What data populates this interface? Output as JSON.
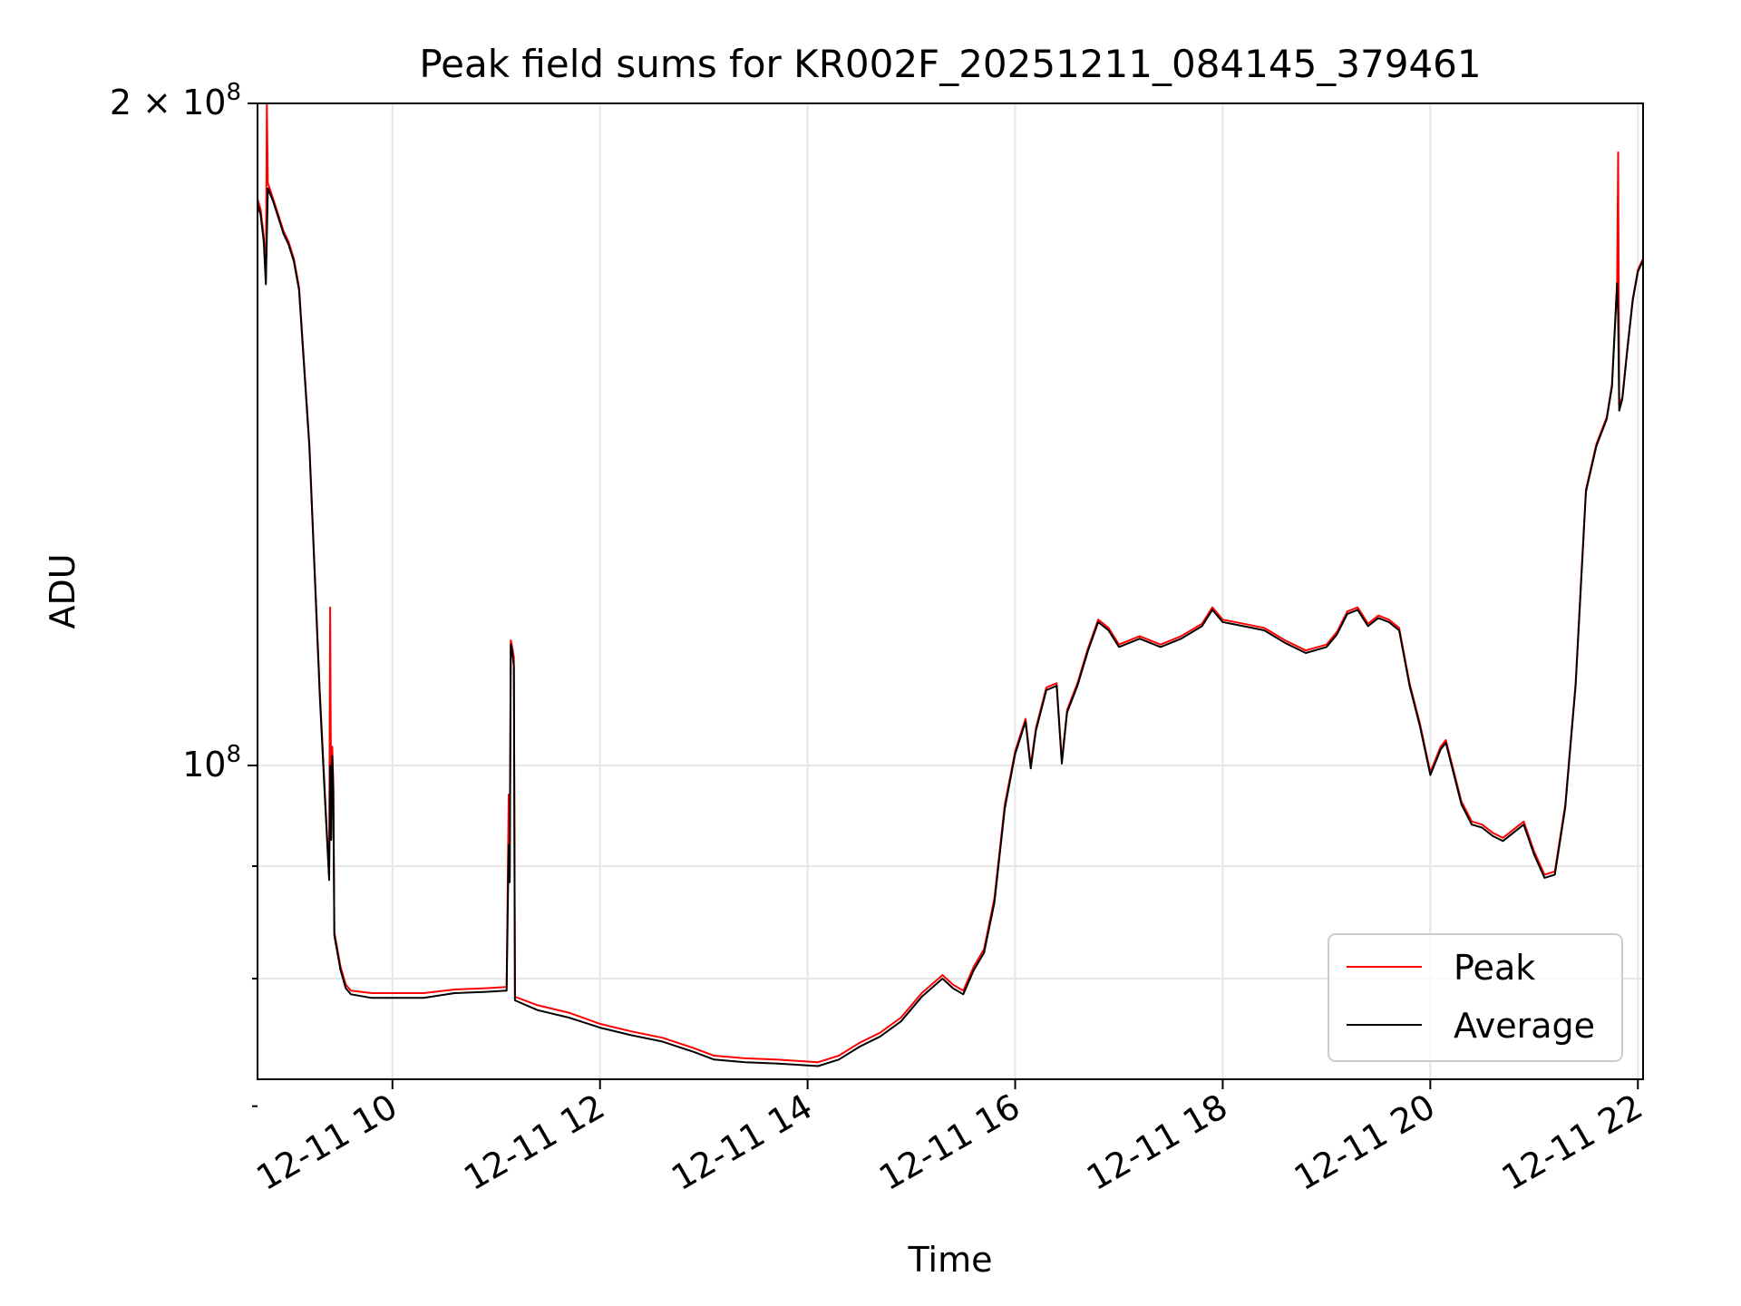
{
  "chart_data": {
    "type": "line",
    "title": "Peak field sums for KR002F_20251211_084145_379461",
    "xlabel": "Time",
    "ylabel": "ADU",
    "yscale": "log",
    "xlim_hours": [
      8.7,
      22.05
    ],
    "ylim": [
      72000000,
      200000000
    ],
    "x_ticks": [
      {
        "value": 10,
        "label": "12-11 10"
      },
      {
        "value": 12,
        "label": "12-11 12"
      },
      {
        "value": 14,
        "label": "12-11 14"
      },
      {
        "value": 16,
        "label": "12-11 16"
      },
      {
        "value": 18,
        "label": "12-11 18"
      },
      {
        "value": 20,
        "label": "12-11 20"
      },
      {
        "value": 22,
        "label": "12-11 22"
      }
    ],
    "y_major_ticks": [
      {
        "value": 200000000,
        "label_base": "2 × 10",
        "label_exp": "8"
      },
      {
        "value": 100000000,
        "label_base": "10",
        "label_exp": "8"
      }
    ],
    "y_minor_ticks": [
      90000000,
      80000000,
      70000000
    ],
    "grid": true,
    "legend_position": "lower-right",
    "series": [
      {
        "name": "Peak",
        "color": "#ff0000",
        "points": [
          [
            8.7,
            181000000
          ],
          [
            8.73,
            179000000
          ],
          [
            8.76,
            174000000
          ],
          [
            8.78,
            166000000
          ],
          [
            8.79,
            200000000
          ],
          [
            8.8,
            184000000
          ],
          [
            8.85,
            181000000
          ],
          [
            8.9,
            178000000
          ],
          [
            8.95,
            175000000
          ],
          [
            9.0,
            173000000
          ],
          [
            9.05,
            170000000
          ],
          [
            9.1,
            165000000
          ],
          [
            9.2,
            140000000
          ],
          [
            9.3,
            108000000
          ],
          [
            9.35,
            97000000
          ],
          [
            9.39,
            89000000
          ],
          [
            9.4,
            118000000
          ],
          [
            9.41,
            93000000
          ],
          [
            9.42,
            102000000
          ],
          [
            9.43,
            98000000
          ],
          [
            9.44,
            84000000
          ],
          [
            9.5,
            81000000
          ],
          [
            9.55,
            79500000
          ],
          [
            9.6,
            79000000
          ],
          [
            9.8,
            78800000
          ],
          [
            10.0,
            78800000
          ],
          [
            10.3,
            78800000
          ],
          [
            10.6,
            79100000
          ],
          [
            10.9,
            79200000
          ],
          [
            11.1,
            79300000
          ],
          [
            11.12,
            97000000
          ],
          [
            11.13,
            89000000
          ],
          [
            11.14,
            114000000
          ],
          [
            11.15,
            113500000
          ],
          [
            11.17,
            112000000
          ],
          [
            11.18,
            78500000
          ],
          [
            11.4,
            77800000
          ],
          [
            11.7,
            77200000
          ],
          [
            12.0,
            76300000
          ],
          [
            12.3,
            75700000
          ],
          [
            12.6,
            75200000
          ],
          [
            12.9,
            74400000
          ],
          [
            13.1,
            73800000
          ],
          [
            13.4,
            73600000
          ],
          [
            13.7,
            73500000
          ],
          [
            13.9,
            73400000
          ],
          [
            14.1,
            73300000
          ],
          [
            14.3,
            73800000
          ],
          [
            14.5,
            74800000
          ],
          [
            14.7,
            75600000
          ],
          [
            14.9,
            76800000
          ],
          [
            15.1,
            78800000
          ],
          [
            15.3,
            80300000
          ],
          [
            15.4,
            79500000
          ],
          [
            15.5,
            79000000
          ],
          [
            15.6,
            81000000
          ],
          [
            15.7,
            82500000
          ],
          [
            15.8,
            87000000
          ],
          [
            15.9,
            96000000
          ],
          [
            16.0,
            101500000
          ],
          [
            16.1,
            105000000
          ],
          [
            16.15,
            100000000
          ],
          [
            16.2,
            104000000
          ],
          [
            16.3,
            108500000
          ],
          [
            16.4,
            109000000
          ],
          [
            16.45,
            100500000
          ],
          [
            16.5,
            106000000
          ],
          [
            16.6,
            109000000
          ],
          [
            16.7,
            113000000
          ],
          [
            16.8,
            116500000
          ],
          [
            16.9,
            115500000
          ],
          [
            17.0,
            113500000
          ],
          [
            17.2,
            114500000
          ],
          [
            17.4,
            113500000
          ],
          [
            17.6,
            114500000
          ],
          [
            17.8,
            116000000
          ],
          [
            17.9,
            118000000
          ],
          [
            18.0,
            116500000
          ],
          [
            18.2,
            116000000
          ],
          [
            18.4,
            115500000
          ],
          [
            18.6,
            114000000
          ],
          [
            18.8,
            112800000
          ],
          [
            19.0,
            113500000
          ],
          [
            19.1,
            115000000
          ],
          [
            19.2,
            117500000
          ],
          [
            19.3,
            118000000
          ],
          [
            19.4,
            116000000
          ],
          [
            19.5,
            117000000
          ],
          [
            19.6,
            116500000
          ],
          [
            19.7,
            115500000
          ],
          [
            19.8,
            109000000
          ],
          [
            19.9,
            104500000
          ],
          [
            20.0,
            99300000
          ],
          [
            20.1,
            102000000
          ],
          [
            20.15,
            102700000
          ],
          [
            20.2,
            100500000
          ],
          [
            20.3,
            96300000
          ],
          [
            20.4,
            94300000
          ],
          [
            20.5,
            94000000
          ],
          [
            20.6,
            93200000
          ],
          [
            20.7,
            92700000
          ],
          [
            20.8,
            93500000
          ],
          [
            20.9,
            94300000
          ],
          [
            21.0,
            91400000
          ],
          [
            21.1,
            89200000
          ],
          [
            21.2,
            89500000
          ],
          [
            21.3,
            96000000
          ],
          [
            21.4,
            109000000
          ],
          [
            21.5,
            133500000
          ],
          [
            21.6,
            140000000
          ],
          [
            21.7,
            144000000
          ],
          [
            21.75,
            149000000
          ],
          [
            21.8,
            166000000
          ],
          [
            21.81,
            190000000
          ],
          [
            21.82,
            146000000
          ],
          [
            21.85,
            147000000
          ],
          [
            21.9,
            155000000
          ],
          [
            21.95,
            163000000
          ],
          [
            22.0,
            168000000
          ],
          [
            22.05,
            170000000
          ]
        ]
      },
      {
        "name": "Average",
        "color": "#000000",
        "points": [
          [
            8.7,
            180000000
          ],
          [
            8.73,
            178000000
          ],
          [
            8.76,
            173000000
          ],
          [
            8.78,
            165500000
          ],
          [
            8.79,
            174000000
          ],
          [
            8.8,
            183000000
          ],
          [
            8.85,
            180500000
          ],
          [
            8.9,
            177500000
          ],
          [
            8.95,
            174500000
          ],
          [
            9.0,
            172500000
          ],
          [
            9.05,
            169500000
          ],
          [
            9.1,
            164500000
          ],
          [
            9.2,
            139500000
          ],
          [
            9.3,
            107500000
          ],
          [
            9.35,
            96500000
          ],
          [
            9.39,
            88700000
          ],
          [
            9.4,
            100000000
          ],
          [
            9.41,
            92500000
          ],
          [
            9.42,
            101000000
          ],
          [
            9.43,
            97500000
          ],
          [
            9.44,
            83700000
          ],
          [
            9.5,
            80700000
          ],
          [
            9.55,
            79200000
          ],
          [
            9.6,
            78700000
          ],
          [
            9.8,
            78400000
          ],
          [
            10.0,
            78400000
          ],
          [
            10.3,
            78400000
          ],
          [
            10.6,
            78800000
          ],
          [
            10.9,
            78900000
          ],
          [
            11.1,
            79000000
          ],
          [
            11.12,
            92000000
          ],
          [
            11.13,
            88500000
          ],
          [
            11.14,
            113500000
          ],
          [
            11.15,
            113000000
          ],
          [
            11.17,
            111000000
          ],
          [
            11.18,
            78200000
          ],
          [
            11.4,
            77400000
          ],
          [
            11.7,
            76800000
          ],
          [
            12.0,
            76000000
          ],
          [
            12.3,
            75400000
          ],
          [
            12.6,
            74900000
          ],
          [
            12.9,
            74100000
          ],
          [
            13.1,
            73500000
          ],
          [
            13.4,
            73300000
          ],
          [
            13.7,
            73200000
          ],
          [
            13.9,
            73100000
          ],
          [
            14.1,
            73000000
          ],
          [
            14.3,
            73500000
          ],
          [
            14.5,
            74500000
          ],
          [
            14.7,
            75300000
          ],
          [
            14.9,
            76500000
          ],
          [
            15.1,
            78500000
          ],
          [
            15.3,
            80000000
          ],
          [
            15.4,
            79200000
          ],
          [
            15.5,
            78700000
          ],
          [
            15.6,
            80700000
          ],
          [
            15.7,
            82200000
          ],
          [
            15.8,
            86600000
          ],
          [
            15.9,
            95600000
          ],
          [
            16.0,
            101200000
          ],
          [
            16.1,
            104700000
          ],
          [
            16.15,
            99700000
          ],
          [
            16.2,
            103700000
          ],
          [
            16.3,
            108200000
          ],
          [
            16.4,
            108700000
          ],
          [
            16.45,
            100200000
          ],
          [
            16.5,
            105700000
          ],
          [
            16.6,
            108700000
          ],
          [
            16.7,
            112700000
          ],
          [
            16.8,
            116200000
          ],
          [
            16.9,
            115200000
          ],
          [
            17.0,
            113200000
          ],
          [
            17.2,
            114200000
          ],
          [
            17.4,
            113200000
          ],
          [
            17.6,
            114200000
          ],
          [
            17.8,
            115700000
          ],
          [
            17.9,
            117700000
          ],
          [
            18.0,
            116200000
          ],
          [
            18.2,
            115700000
          ],
          [
            18.4,
            115200000
          ],
          [
            18.6,
            113700000
          ],
          [
            18.8,
            112500000
          ],
          [
            19.0,
            113200000
          ],
          [
            19.1,
            114700000
          ],
          [
            19.2,
            117200000
          ],
          [
            19.3,
            117700000
          ],
          [
            19.4,
            115700000
          ],
          [
            19.5,
            116700000
          ],
          [
            19.6,
            116200000
          ],
          [
            19.7,
            115200000
          ],
          [
            19.8,
            108700000
          ],
          [
            19.9,
            104200000
          ],
          [
            20.0,
            99000000
          ],
          [
            20.1,
            101700000
          ],
          [
            20.15,
            102400000
          ],
          [
            20.2,
            100200000
          ],
          [
            20.3,
            96000000
          ],
          [
            20.4,
            94000000
          ],
          [
            20.5,
            93700000
          ],
          [
            20.6,
            92900000
          ],
          [
            20.7,
            92400000
          ],
          [
            20.8,
            93200000
          ],
          [
            20.9,
            94000000
          ],
          [
            21.0,
            91100000
          ],
          [
            21.1,
            88900000
          ],
          [
            21.2,
            89200000
          ],
          [
            21.3,
            95700000
          ],
          [
            21.4,
            108700000
          ],
          [
            21.5,
            133200000
          ],
          [
            21.6,
            139700000
          ],
          [
            21.7,
            143700000
          ],
          [
            21.75,
            148700000
          ],
          [
            21.8,
            165700000
          ],
          [
            21.81,
            160000000
          ],
          [
            21.82,
            145000000
          ],
          [
            21.85,
            146700000
          ],
          [
            21.9,
            154700000
          ],
          [
            21.95,
            162700000
          ],
          [
            22.0,
            167700000
          ],
          [
            22.05,
            169700000
          ]
        ]
      }
    ]
  }
}
